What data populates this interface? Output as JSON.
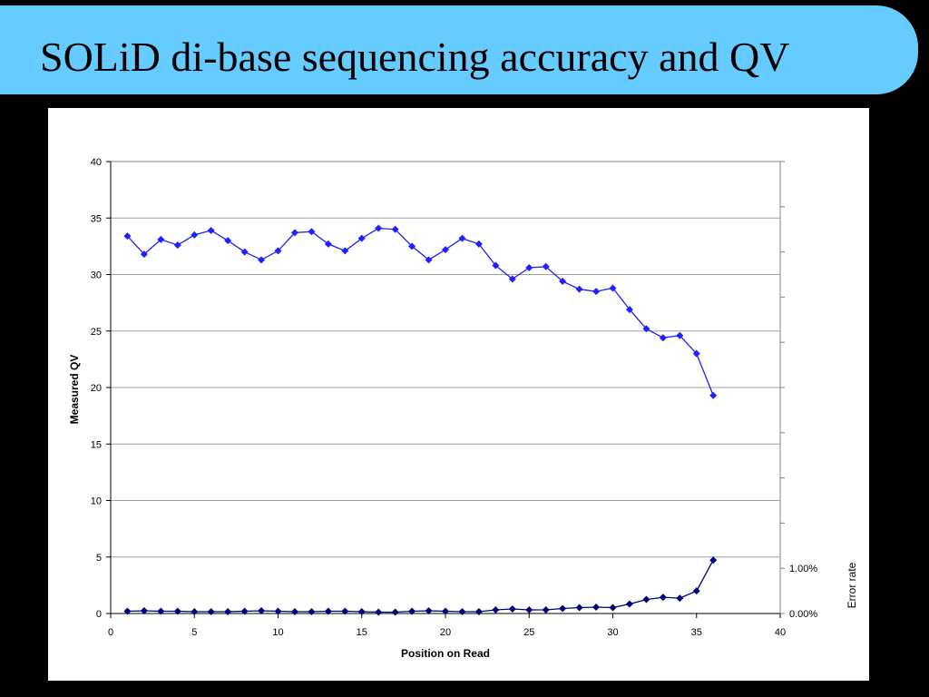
{
  "slide": {
    "title": "SOLiD di-base sequencing accuracy and QV",
    "title_bar_color": "#66ccff"
  },
  "chart_data": {
    "type": "line",
    "title": "",
    "xlabel": "Position on Read",
    "ylabel": "Measured QV",
    "y2label": "Error rate",
    "xlim": [
      0,
      40
    ],
    "ylim": [
      0,
      40
    ],
    "x_ticks": [
      "0",
      "5",
      "10",
      "15",
      "20",
      "25",
      "30",
      "35",
      "40"
    ],
    "y_ticks": [
      "0",
      "5",
      "10",
      "15",
      "20",
      "25",
      "30",
      "35",
      "40"
    ],
    "y2_ticks": [
      {
        "label": "0.00%",
        "value": 0
      },
      {
        "label": "1.00%",
        "value": 0.01
      }
    ],
    "grid": "horizontal",
    "legend": "none",
    "series": [
      {
        "axis": "left",
        "color": "#1f1fff",
        "marker": "diamond",
        "x": [
          1,
          2,
          3,
          4,
          5,
          6,
          7,
          8,
          9,
          10,
          11,
          12,
          13,
          14,
          15,
          16,
          17,
          18,
          19,
          20,
          21,
          22,
          23,
          24,
          25,
          26,
          27,
          28,
          29,
          30,
          31,
          32,
          33,
          34,
          35,
          36
        ],
        "y": [
          33.4,
          31.8,
          33.1,
          32.6,
          33.5,
          33.9,
          33.0,
          32.0,
          31.3,
          32.1,
          33.7,
          33.8,
          32.7,
          32.1,
          33.2,
          34.1,
          34.0,
          32.5,
          31.3,
          32.2,
          33.2,
          32.7,
          30.8,
          29.6,
          30.6,
          30.7,
          29.4,
          28.7,
          28.5,
          28.8,
          26.9,
          25.2,
          24.4,
          24.6,
          23.0,
          19.3
        ]
      },
      {
        "axis": "right",
        "color": "#00007a",
        "marker": "diamond",
        "x": [
          1,
          2,
          3,
          4,
          5,
          6,
          7,
          8,
          9,
          10,
          11,
          12,
          13,
          14,
          15,
          16,
          17,
          18,
          19,
          20,
          21,
          22,
          23,
          24,
          25,
          26,
          27,
          28,
          29,
          30,
          31,
          32,
          33,
          34,
          35,
          36
        ],
        "y": [
          0.0005,
          0.0006,
          0.0005,
          0.0005,
          0.0004,
          0.0004,
          0.0004,
          0.0005,
          0.0006,
          0.0005,
          0.0004,
          0.0004,
          0.0005,
          0.0005,
          0.0004,
          0.0003,
          0.0003,
          0.0005,
          0.0006,
          0.0005,
          0.0004,
          0.0004,
          0.0008,
          0.001,
          0.0008,
          0.0008,
          0.0011,
          0.0013,
          0.0014,
          0.0013,
          0.0021,
          0.0031,
          0.0036,
          0.0034,
          0.005,
          0.0118
        ]
      }
    ]
  }
}
